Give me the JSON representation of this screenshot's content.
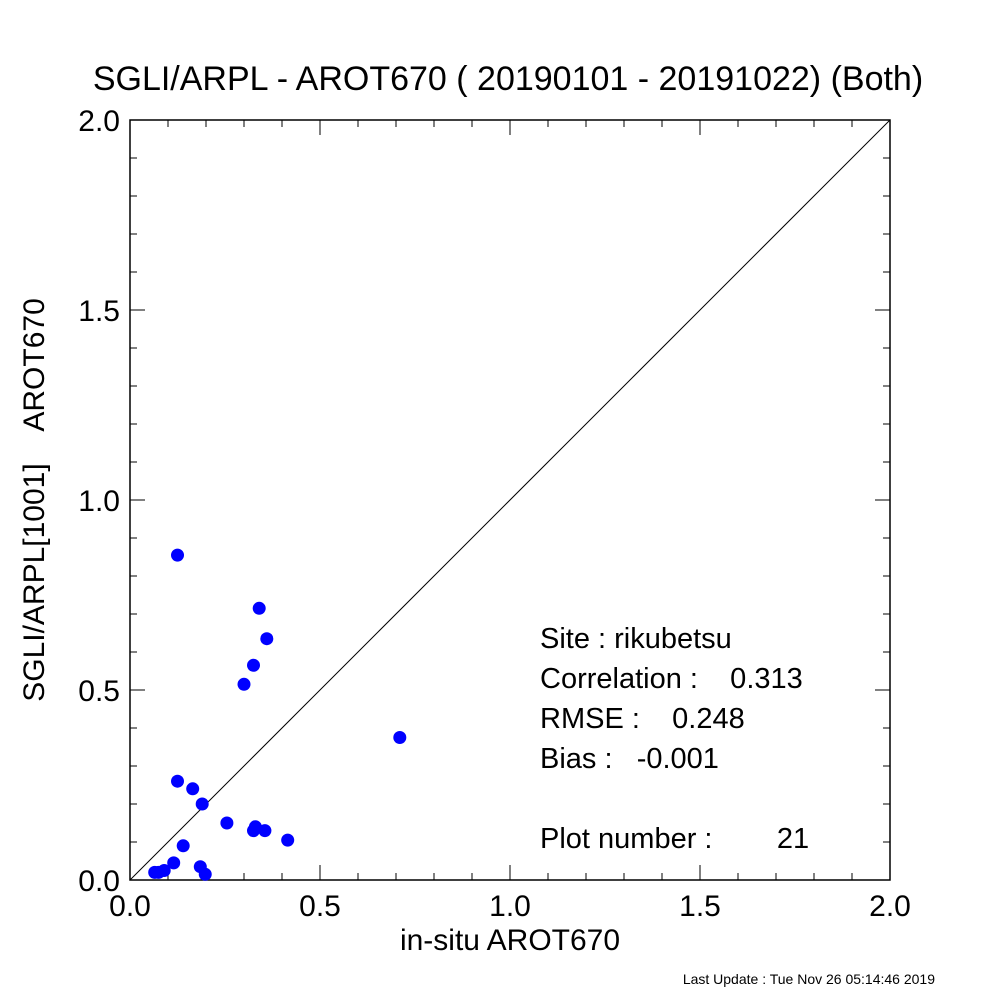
{
  "chart_data": {
    "type": "scatter",
    "title": "SGLI/ARPL - AROT670 ( 20190101 - 20191022) (Both)",
    "xlabel": "in-situ AROT670",
    "ylabel": "SGLI/ARPL[1001]    AROT670",
    "xlim": [
      0.0,
      2.0
    ],
    "ylim": [
      0.0,
      2.0
    ],
    "xticks": [
      "0.0",
      "0.5",
      "1.0",
      "1.5",
      "2.0"
    ],
    "yticks": [
      "0.0",
      "0.5",
      "1.0",
      "1.5",
      "2.0"
    ],
    "grid": false,
    "reference_line": "1:1",
    "marker_color": "#0000ff",
    "points": [
      {
        "x": 0.065,
        "y": 0.02
      },
      {
        "x": 0.075,
        "y": 0.02
      },
      {
        "x": 0.09,
        "y": 0.025
      },
      {
        "x": 0.115,
        "y": 0.045
      },
      {
        "x": 0.125,
        "y": 0.855
      },
      {
        "x": 0.125,
        "y": 0.26
      },
      {
        "x": 0.14,
        "y": 0.09
      },
      {
        "x": 0.165,
        "y": 0.24
      },
      {
        "x": 0.185,
        "y": 0.035
      },
      {
        "x": 0.19,
        "y": 0.2
      },
      {
        "x": 0.198,
        "y": 0.015
      },
      {
        "x": 0.255,
        "y": 0.15
      },
      {
        "x": 0.3,
        "y": 0.515
      },
      {
        "x": 0.325,
        "y": 0.565
      },
      {
        "x": 0.325,
        "y": 0.13
      },
      {
        "x": 0.33,
        "y": 0.14
      },
      {
        "x": 0.34,
        "y": 0.715
      },
      {
        "x": 0.355,
        "y": 0.13
      },
      {
        "x": 0.36,
        "y": 0.635
      },
      {
        "x": 0.415,
        "y": 0.105
      },
      {
        "x": 0.71,
        "y": 0.375
      }
    ],
    "stats": {
      "site": "Site : rikubetsu",
      "correlation": "Correlation :    0.313",
      "rmse": "RMSE :    0.248",
      "bias": "Bias :   -0.001",
      "plot_number": "Plot number :        21"
    }
  },
  "footer": "Last Update : Tue Nov 26 05:14:46 2019"
}
